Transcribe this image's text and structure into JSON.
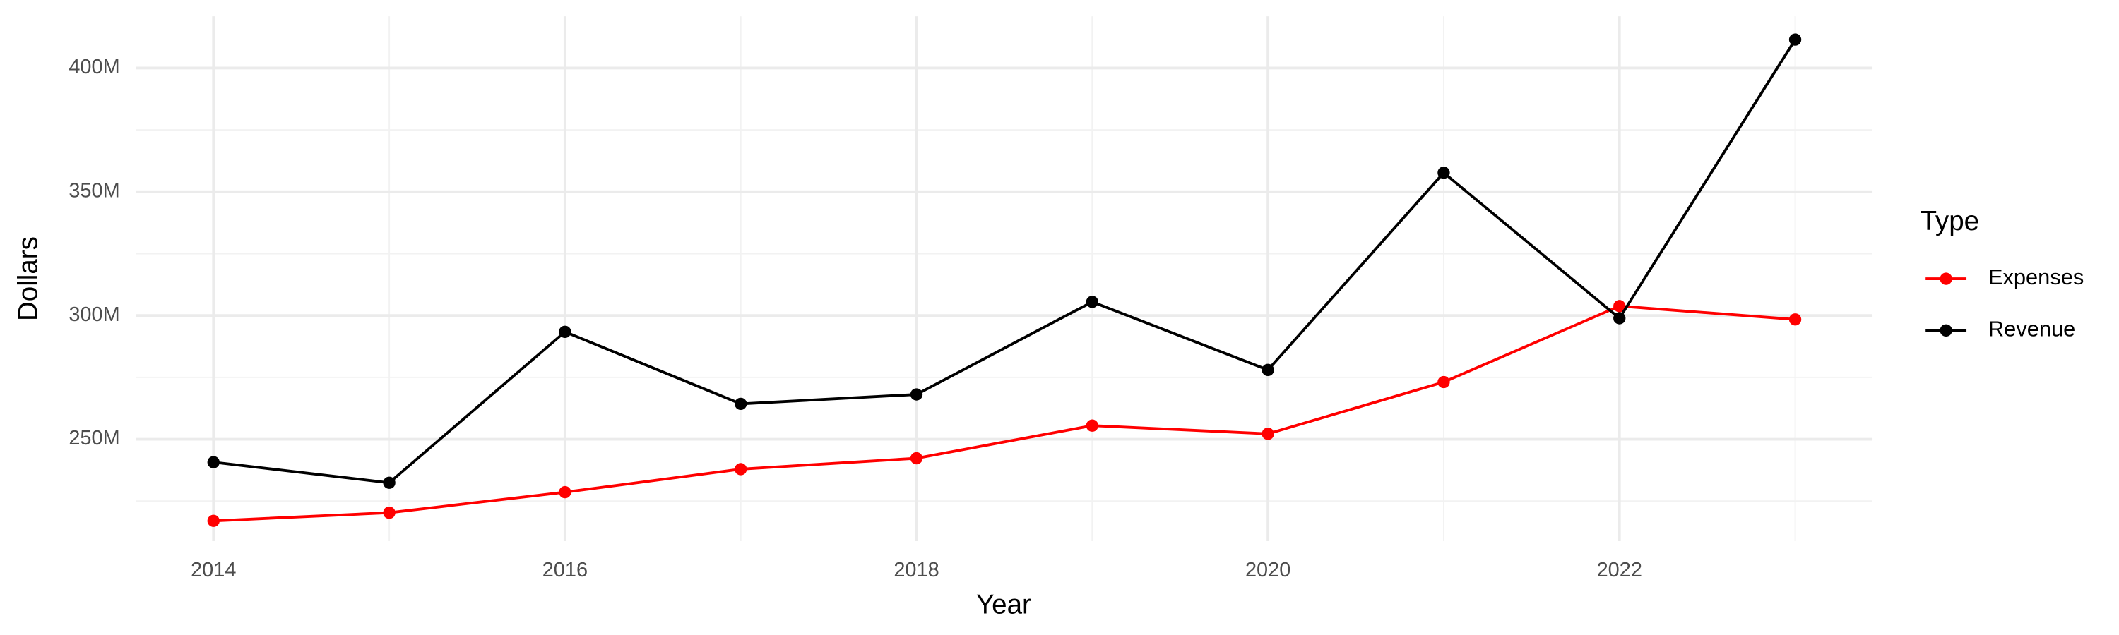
{
  "chart_data": {
    "type": "line",
    "x_label": "Year",
    "y_label": "Dollars",
    "legend_title": "Type",
    "legend_position": "right",
    "grid": true,
    "x": [
      2014,
      2015,
      2016,
      2017,
      2018,
      2019,
      2020,
      2021,
      2022,
      2023
    ],
    "series": [
      {
        "name": "Expenses",
        "color": "#ff0000",
        "values": [
          217000000,
          220300000,
          228600000,
          237900000,
          242300000,
          255500000,
          252200000,
          273100000,
          303800000,
          298400000
        ]
      },
      {
        "name": "Revenue",
        "color": "#000000",
        "values": [
          240700000,
          232400000,
          293400000,
          264300000,
          268100000,
          305500000,
          278000000,
          357700000,
          298900000,
          411500000
        ]
      }
    ],
    "xlim": [
      2013.56,
      2023.44
    ],
    "xticks": [
      2014,
      2016,
      2018,
      2020,
      2022
    ],
    "ylim": [
      208800000,
      420900000
    ],
    "yticks": [
      {
        "value": 250000000,
        "label": "250M"
      },
      {
        "value": 300000000,
        "label": "300M"
      },
      {
        "value": 350000000,
        "label": "350M"
      },
      {
        "value": 400000000,
        "label": "400M"
      }
    ]
  }
}
